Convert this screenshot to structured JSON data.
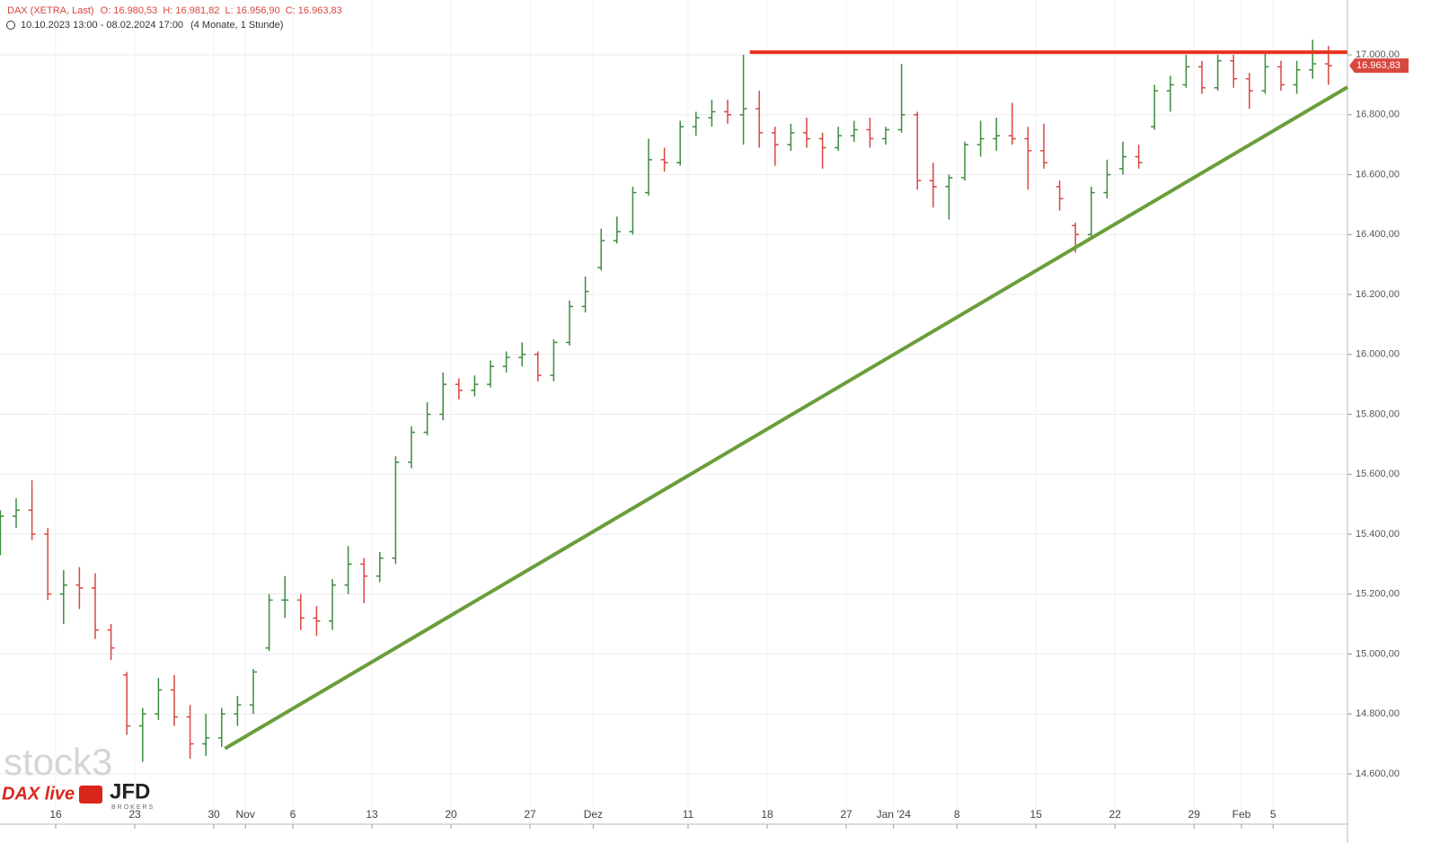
{
  "chart_data": {
    "type": "ohlc",
    "header": {
      "symbol": "DAX (XETRA, Last)",
      "ohlc_text": "O: 16.980,53  H: 16.981,82  L: 16.956,90  C: 16.963,83",
      "range": "10.10.2023 13:00 - 08.02.2024 17:00",
      "interval": "(4 Monate, 1 Stunde)"
    },
    "branding": {
      "watermark": "stock3",
      "dax_live": "DAX live",
      "jfd": "JFD",
      "brokers": "BROKERS"
    },
    "categories": [
      null,
      null,
      null,
      null,
      "16",
      null,
      null,
      null,
      null,
      "23",
      null,
      null,
      null,
      null,
      "30",
      null,
      "Nov",
      null,
      null,
      "6",
      null,
      null,
      null,
      null,
      "13",
      null,
      null,
      null,
      null,
      "20",
      null,
      null,
      null,
      null,
      "27",
      null,
      null,
      null,
      "Dez",
      null,
      null,
      null,
      null,
      null,
      "11",
      null,
      null,
      null,
      null,
      "18",
      null,
      null,
      null,
      null,
      "27",
      null,
      null,
      "Jan '24",
      null,
      null,
      null,
      "8",
      null,
      null,
      null,
      null,
      "15",
      null,
      null,
      null,
      null,
      "22",
      null,
      null,
      null,
      null,
      "29",
      null,
      null,
      "Feb",
      null,
      "5",
      null,
      null,
      null
    ],
    "open": [
      15350,
      15460,
      15480,
      15400,
      15200,
      15230,
      15220,
      15080,
      14930,
      14760,
      14800,
      14880,
      14790,
      14700,
      14720,
      14800,
      14830,
      15020,
      15180,
      15180,
      15120,
      15110,
      15230,
      15300,
      15260,
      15320,
      15640,
      15740,
      15800,
      15900,
      15880,
      15900,
      15960,
      15990,
      16000,
      15930,
      16040,
      16160,
      16290,
      16380,
      16410,
      16540,
      16650,
      16640,
      16760,
      16790,
      16810,
      16800,
      16820,
      16740,
      16700,
      16740,
      16720,
      16690,
      16730,
      16750,
      16720,
      16750,
      16800,
      16580,
      16560,
      16590,
      16700,
      16720,
      16730,
      16720,
      16680,
      16560,
      16430,
      16400,
      16540,
      16620,
      16660,
      16760,
      16880,
      16900,
      16960,
      16890,
      16980,
      16920,
      16880,
      16960,
      16900,
      16950,
      16970
    ],
    "high": [
      15480,
      15520,
      15580,
      15420,
      15280,
      15290,
      15270,
      15100,
      14940,
      14820,
      14920,
      14930,
      14830,
      14800,
      14820,
      14860,
      14950,
      15200,
      15260,
      15200,
      15160,
      15250,
      15360,
      15320,
      15340,
      15660,
      15760,
      15840,
      15940,
      15920,
      15930,
      15980,
      16010,
      16040,
      16010,
      16050,
      16180,
      16260,
      16420,
      16460,
      16560,
      16720,
      16690,
      16780,
      16810,
      16850,
      16850,
      17000,
      16880,
      16760,
      16770,
      16790,
      16740,
      16760,
      16780,
      16790,
      16760,
      16970,
      16810,
      16640,
      16600,
      16710,
      16780,
      16790,
      16840,
      16760,
      16770,
      16580,
      16440,
      16560,
      16650,
      16710,
      16700,
      16900,
      16930,
      17000,
      16980,
      17000,
      17000,
      16940,
      17010,
      16980,
      16980,
      17050,
      17030
    ],
    "low": [
      15330,
      15420,
      15380,
      15180,
      15100,
      15150,
      15050,
      14980,
      14730,
      14640,
      14780,
      14760,
      14650,
      14660,
      14690,
      14760,
      14800,
      15010,
      15120,
      15080,
      15060,
      15080,
      15200,
      15170,
      15240,
      15300,
      15620,
      15730,
      15780,
      15850,
      15860,
      15890,
      15940,
      15960,
      15910,
      15910,
      16030,
      16140,
      16280,
      16370,
      16400,
      16530,
      16610,
      16630,
      16730,
      16760,
      16770,
      16700,
      16690,
      16630,
      16680,
      16690,
      16620,
      16680,
      16710,
      16690,
      16700,
      16740,
      16550,
      16490,
      16450,
      16580,
      16660,
      16680,
      16700,
      16550,
      16620,
      16480,
      16340,
      16390,
      16520,
      16600,
      16620,
      16750,
      16810,
      16890,
      16870,
      16880,
      16890,
      16820,
      16870,
      16880,
      16870,
      16920,
      16900
    ],
    "close": [
      15460,
      15480,
      15400,
      15200,
      15230,
      15220,
      15080,
      15020,
      14760,
      14800,
      14880,
      14790,
      14700,
      14720,
      14800,
      14830,
      14940,
      15180,
      15180,
      15120,
      15110,
      15230,
      15300,
      15260,
      15320,
      15640,
      15740,
      15800,
      15900,
      15880,
      15900,
      15960,
      15990,
      16000,
      15930,
      16040,
      16160,
      16210,
      16380,
      16410,
      16540,
      16650,
      16640,
      16760,
      16790,
      16810,
      16800,
      16820,
      16740,
      16700,
      16740,
      16720,
      16690,
      16730,
      16750,
      16720,
      16750,
      16800,
      16580,
      16560,
      16590,
      16700,
      16720,
      16730,
      16720,
      16680,
      16640,
      16520,
      16400,
      16540,
      16600,
      16660,
      16640,
      16880,
      16900,
      16960,
      16890,
      16980,
      16920,
      16880,
      16960,
      16900,
      16950,
      16970,
      16963.83
    ],
    "up_color": "#3d8c3d",
    "down_color": "#d9473f",
    "last_price": {
      "value": 16963.83,
      "label": "16.963,83"
    },
    "trend_lines": [
      {
        "color": "#e8321e",
        "x": [
          47.9,
          85.7
        ],
        "values": [
          17009,
          17009
        ]
      },
      {
        "color": "#6a9e3a",
        "x": [
          14.7,
          85.7
        ],
        "values": [
          14684,
          16892
        ]
      }
    ],
    "ylim": [
      14432,
      17183
    ],
    "yticks": [
      {
        "value": 14600,
        "label": "14.600,00"
      },
      {
        "value": 14800,
        "label": "14.800,00"
      },
      {
        "value": 15000,
        "label": "15.000,00"
      },
      {
        "value": 15200,
        "label": "15.200,00"
      },
      {
        "value": 15400,
        "label": "15.400,00"
      },
      {
        "value": 15600,
        "label": "15.600,00"
      },
      {
        "value": 15800,
        "label": "15.800,00"
      },
      {
        "value": 16000,
        "label": "16.000,00"
      },
      {
        "value": 16200,
        "label": "16.200,00"
      },
      {
        "value": 16400,
        "label": "16.400,00"
      },
      {
        "value": 16600,
        "label": "16.600,00"
      },
      {
        "value": 16800,
        "label": "16.800,00"
      },
      {
        "value": 17000,
        "label": "17.000,00"
      }
    ],
    "grid": true
  }
}
